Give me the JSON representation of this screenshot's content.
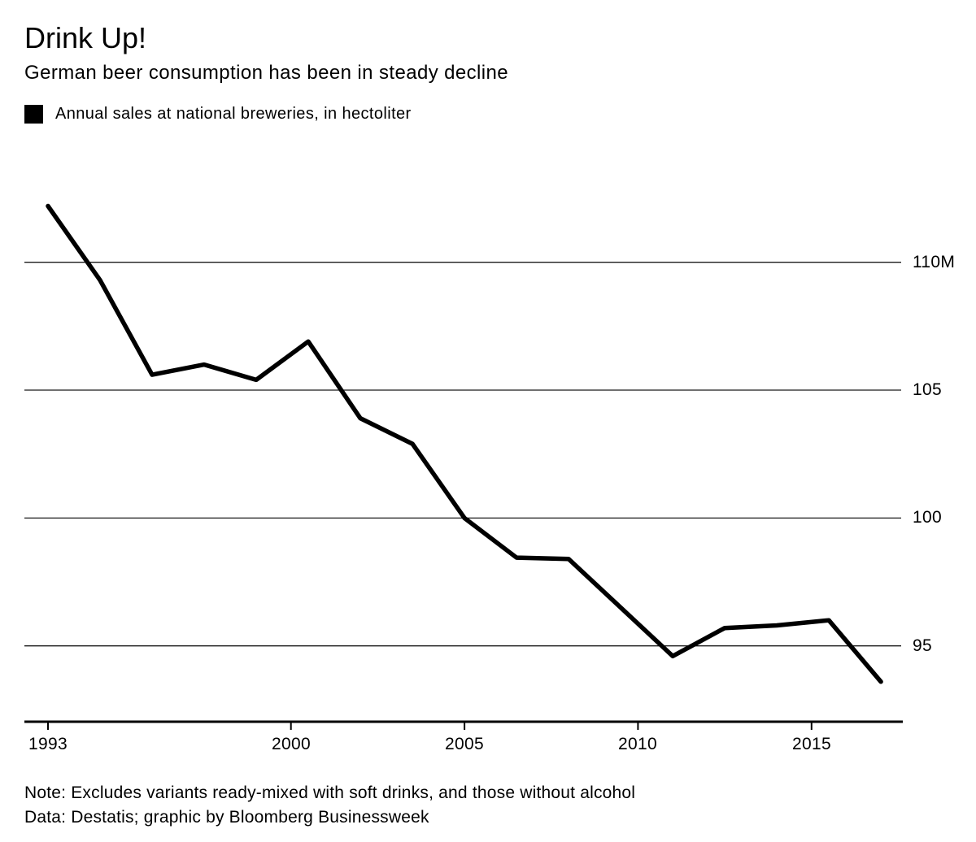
{
  "header": {
    "title": "Drink Up!",
    "subtitle": "German beer consumption has been in steady decline"
  },
  "legend": {
    "swatch_color": "#000000",
    "label": "Annual sales at national breweries, in hectoliter"
  },
  "chart_data": {
    "type": "line",
    "title": "Drink Up!",
    "subtitle": "German beer consumption has been in steady decline",
    "series": [
      {
        "name": "Annual sales at national breweries, in hectoliter",
        "unit": "million hectoliters",
        "color": "#000000",
        "x": [
          1993,
          1994.5,
          1996,
          1997.5,
          1999,
          2000.5,
          2002,
          2003.5,
          2005,
          2006.5,
          2008,
          2009.5,
          2011,
          2012.5,
          2014,
          2015.5,
          2017
        ],
        "y": [
          112.2,
          109.3,
          105.6,
          106.0,
          105.4,
          106.9,
          103.9,
          102.9,
          100.0,
          98.45,
          98.4,
          96.5,
          94.6,
          95.7,
          95.8,
          96.0,
          93.6
        ]
      }
    ],
    "x_ticks": [
      {
        "value": 1993,
        "label": "1993"
      },
      {
        "value": 2000,
        "label": "2000"
      },
      {
        "value": 2005,
        "label": "2005"
      },
      {
        "value": 2010,
        "label": "2010"
      },
      {
        "value": 2015,
        "label": "2015"
      }
    ],
    "y_ticks": [
      {
        "value": 110,
        "label": "110M"
      },
      {
        "value": 105,
        "label": "105"
      },
      {
        "value": 100,
        "label": "100"
      },
      {
        "value": 95,
        "label": "95"
      }
    ],
    "xlim": [
      1992.32,
      2017.65
    ],
    "ylim": [
      92.0,
      113.8
    ],
    "grid": "horizontal gridlines at y ticks",
    "legend_position": "top-left above chart",
    "axis_color": "#000000",
    "gridline_color": "#1a1a1a"
  },
  "footer": {
    "note": "Note: Excludes variants ready-mixed with soft drinks, and those without alcohol",
    "source": "Data: Destatis; graphic by Bloomberg Businessweek"
  }
}
